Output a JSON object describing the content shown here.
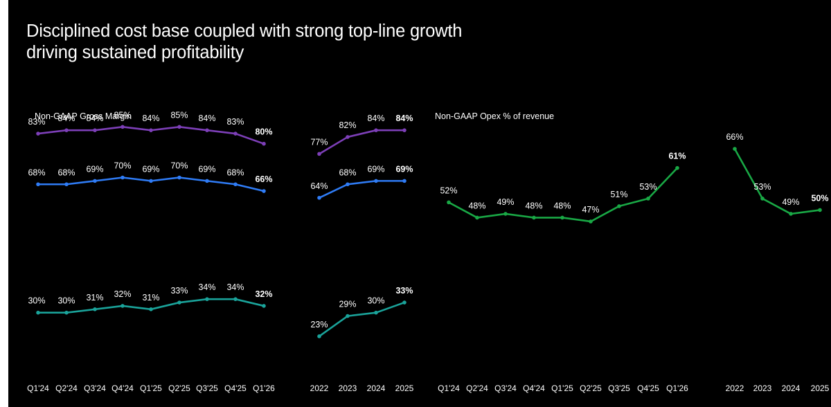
{
  "title_lines": [
    "Disciplined cost base coupled with strong top-line growth",
    "driving sustained profitability"
  ],
  "panels": {
    "left_label": "Non-GAAP Gross Margin",
    "right_label": "Non-GAAP Opex % of revenue"
  },
  "colors": {
    "purple": "#7d3fb8",
    "blue": "#2f7cf6",
    "teal": "#1aa39a",
    "green": "#19a845",
    "background": "#000000",
    "text": "#ffffff"
  },
  "chart_data": [
    {
      "type": "line",
      "title": "Non-GAAP Gross Margin",
      "categories": [
        "Q1'24",
        "Q2'24",
        "Q3'24",
        "Q4'24",
        "Q1'25",
        "Q2'25",
        "Q3'25",
        "Q4'25",
        "Q1'26"
      ],
      "series": [
        {
          "color": "#7d3fb8",
          "values": [
            83,
            84,
            84,
            85,
            84,
            85,
            84,
            83,
            80
          ],
          "labels": [
            "83%",
            "84%",
            "84%",
            "85%",
            "84%",
            "85%",
            "84%",
            "83%",
            "80%"
          ]
        },
        {
          "color": "#2f7cf6",
          "values": [
            68,
            68,
            69,
            70,
            69,
            70,
            69,
            68,
            66
          ],
          "labels": [
            "68%",
            "68%",
            "69%",
            "70%",
            "69%",
            "70%",
            "69%",
            "68%",
            "66%"
          ]
        },
        {
          "color": "#1aa39a",
          "values": [
            30,
            30,
            31,
            32,
            31,
            33,
            34,
            34,
            32
          ],
          "labels": [
            "30%",
            "30%",
            "31%",
            "32%",
            "31%",
            "33%",
            "34%",
            "34%",
            "32%"
          ]
        }
      ],
      "bold_last": true
    },
    {
      "type": "line",
      "categories": [
        "2022",
        "2023",
        "2024",
        "2025"
      ],
      "series": [
        {
          "color": "#7d3fb8",
          "values": [
            77,
            82,
            84,
            84
          ],
          "labels": [
            "77%",
            "82%",
            "84%",
            "84%"
          ]
        },
        {
          "color": "#2f7cf6",
          "values": [
            64,
            68,
            69,
            69
          ],
          "labels": [
            "64%",
            "68%",
            "69%",
            "69%"
          ]
        },
        {
          "color": "#1aa39a",
          "values": [
            23,
            29,
            30,
            33
          ],
          "labels": [
            "23%",
            "29%",
            "30%",
            "33%"
          ]
        }
      ],
      "bold_last": true
    },
    {
      "type": "line",
      "title": "Non-GAAP Opex % of revenue",
      "categories": [
        "Q1'24",
        "Q2'24",
        "Q3'24",
        "Q4'24",
        "Q1'25",
        "Q2'25",
        "Q3'25",
        "Q4'25",
        "Q1'26"
      ],
      "series": [
        {
          "color": "#19a845",
          "values": [
            52,
            48,
            49,
            48,
            48,
            47,
            51,
            53,
            61
          ],
          "labels": [
            "52%",
            "48%",
            "49%",
            "48%",
            "48%",
            "47%",
            "51%",
            "53%",
            "61%"
          ]
        }
      ],
      "bold_last": true
    },
    {
      "type": "line",
      "categories": [
        "2022",
        "2023",
        "2024",
        "2025"
      ],
      "series": [
        {
          "color": "#19a845",
          "values": [
            66,
            53,
            49,
            50
          ],
          "labels": [
            "66%",
            "53%",
            "49%",
            "50%"
          ]
        }
      ],
      "bold_last": true
    }
  ]
}
